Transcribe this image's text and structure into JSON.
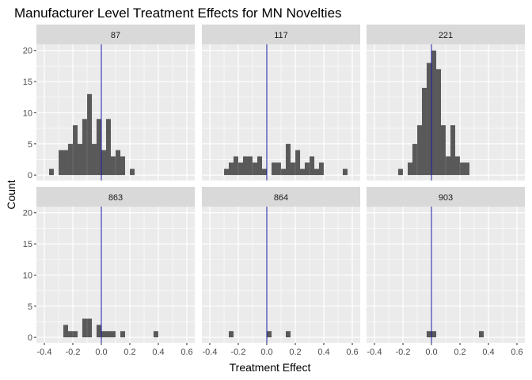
{
  "chart_data": {
    "type": "bar",
    "title": "Manufacturer Level Treatment Effects for MN Novelties",
    "xlabel": "Treatment Effect",
    "ylabel": "Count",
    "xlim": [
      -0.4,
      0.6
    ],
    "ylim": [
      0,
      20
    ],
    "x_ticks": [
      -0.4,
      -0.2,
      0.0,
      0.2,
      0.4,
      0.6
    ],
    "x_tick_labels": [
      "-0.4",
      "-0.2",
      "0.0",
      "0.2",
      "0.4",
      "0.6"
    ],
    "y_ticks": [
      0,
      5,
      10,
      15,
      20
    ],
    "y_tick_labels": [
      "0",
      "5",
      "10",
      "15",
      "20"
    ],
    "bin_width": 0.0333,
    "reference_line_x": 0,
    "grid": true,
    "bar_color": "#595959",
    "reference_line_color": "#1a1aa6",
    "panel_background": "#ebebeb",
    "strip_background": "#d9d9d9",
    "panels": [
      {
        "label": "87",
        "bins": [
          {
            "x": -0.35,
            "count": 1
          },
          {
            "x": -0.283,
            "count": 4
          },
          {
            "x": -0.25,
            "count": 4
          },
          {
            "x": -0.217,
            "count": 5
          },
          {
            "x": -0.183,
            "count": 8
          },
          {
            "x": -0.15,
            "count": 5
          },
          {
            "x": -0.117,
            "count": 9
          },
          {
            "x": -0.083,
            "count": 13
          },
          {
            "x": -0.05,
            "count": 5
          },
          {
            "x": -0.017,
            "count": 9
          },
          {
            "x": 0.017,
            "count": 4
          },
          {
            "x": 0.05,
            "count": 9
          },
          {
            "x": 0.083,
            "count": 3
          },
          {
            "x": 0.117,
            "count": 4
          },
          {
            "x": 0.15,
            "count": 3
          },
          {
            "x": 0.217,
            "count": 1
          }
        ]
      },
      {
        "label": "117",
        "bins": [
          {
            "x": -0.283,
            "count": 1
          },
          {
            "x": -0.25,
            "count": 2
          },
          {
            "x": -0.217,
            "count": 3
          },
          {
            "x": -0.183,
            "count": 2
          },
          {
            "x": -0.15,
            "count": 3
          },
          {
            "x": -0.117,
            "count": 3
          },
          {
            "x": -0.083,
            "count": 2
          },
          {
            "x": -0.05,
            "count": 3
          },
          {
            "x": -0.017,
            "count": 1
          },
          {
            "x": 0.05,
            "count": 2
          },
          {
            "x": 0.083,
            "count": 2
          },
          {
            "x": 0.117,
            "count": 1
          },
          {
            "x": 0.15,
            "count": 5
          },
          {
            "x": 0.183,
            "count": 2
          },
          {
            "x": 0.217,
            "count": 4
          },
          {
            "x": 0.25,
            "count": 1
          },
          {
            "x": 0.283,
            "count": 2
          },
          {
            "x": 0.317,
            "count": 3
          },
          {
            "x": 0.35,
            "count": 1
          },
          {
            "x": 0.383,
            "count": 2
          },
          {
            "x": 0.55,
            "count": 1
          }
        ]
      },
      {
        "label": "221",
        "bins": [
          {
            "x": -0.217,
            "count": 1
          },
          {
            "x": -0.15,
            "count": 2
          },
          {
            "x": -0.117,
            "count": 5
          },
          {
            "x": -0.083,
            "count": 8
          },
          {
            "x": -0.05,
            "count": 14
          },
          {
            "x": -0.017,
            "count": 18
          },
          {
            "x": 0.017,
            "count": 20
          },
          {
            "x": 0.05,
            "count": 17
          },
          {
            "x": 0.083,
            "count": 8
          },
          {
            "x": 0.117,
            "count": 3
          },
          {
            "x": 0.15,
            "count": 8
          },
          {
            "x": 0.183,
            "count": 3
          },
          {
            "x": 0.217,
            "count": 2
          },
          {
            "x": 0.25,
            "count": 2
          }
        ]
      },
      {
        "label": "863",
        "bins": [
          {
            "x": -0.25,
            "count": 2
          },
          {
            "x": -0.217,
            "count": 1
          },
          {
            "x": -0.183,
            "count": 1
          },
          {
            "x": -0.117,
            "count": 3
          },
          {
            "x": -0.083,
            "count": 3
          },
          {
            "x": -0.017,
            "count": 2
          },
          {
            "x": 0.017,
            "count": 1
          },
          {
            "x": 0.05,
            "count": 1
          },
          {
            "x": 0.083,
            "count": 1
          },
          {
            "x": 0.15,
            "count": 1
          },
          {
            "x": 0.383,
            "count": 1
          }
        ]
      },
      {
        "label": "864",
        "bins": [
          {
            "x": -0.25,
            "count": 1
          },
          {
            "x": 0.017,
            "count": 1
          },
          {
            "x": 0.15,
            "count": 1
          }
        ]
      },
      {
        "label": "903",
        "bins": [
          {
            "x": -0.017,
            "count": 1
          },
          {
            "x": 0.017,
            "count": 1
          },
          {
            "x": 0.35,
            "count": 1
          }
        ]
      }
    ]
  }
}
